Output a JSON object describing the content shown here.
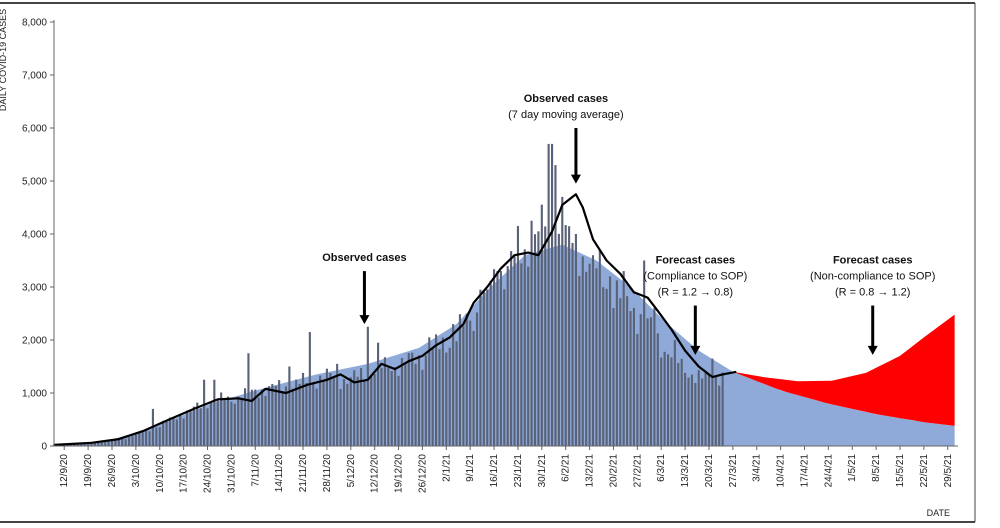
{
  "chart_data": {
    "type": "bar",
    "ylabel": "DAILY COVID-19 CASES",
    "xlabel": "DATE",
    "ylim": [
      0,
      8000
    ],
    "y_ticks": [
      0,
      1000,
      2000,
      3000,
      4000,
      5000,
      6000,
      7000,
      8000
    ],
    "y_tick_labels": [
      "0",
      "1,000",
      "2,000",
      "3,000",
      "4,000",
      "5,000",
      "6,000",
      "7,000",
      "8,000"
    ],
    "x_range": [
      "2020-09-09",
      "2021-06-01"
    ],
    "x_ticks": [
      {
        "date": "2020-09-12",
        "label": "12/9/20"
      },
      {
        "date": "2020-09-19",
        "label": "19/9/20"
      },
      {
        "date": "2020-09-26",
        "label": "26/9/20"
      },
      {
        "date": "2020-10-03",
        "label": "3/10/20"
      },
      {
        "date": "2020-10-10",
        "label": "10/10/20"
      },
      {
        "date": "2020-10-17",
        "label": "17/10/20"
      },
      {
        "date": "2020-10-24",
        "label": "24/10/20"
      },
      {
        "date": "2020-10-31",
        "label": "31/10/20"
      },
      {
        "date": "2020-11-07",
        "label": "7/11/20"
      },
      {
        "date": "2020-11-14",
        "label": "14/11/20"
      },
      {
        "date": "2020-11-21",
        "label": "21/11/20"
      },
      {
        "date": "2020-11-28",
        "label": "28/11/20"
      },
      {
        "date": "2020-12-05",
        "label": "5/12/20"
      },
      {
        "date": "2020-12-12",
        "label": "12/12/20"
      },
      {
        "date": "2020-12-19",
        "label": "19/12/20"
      },
      {
        "date": "2020-12-26",
        "label": "26/12/20"
      },
      {
        "date": "2021-01-02",
        "label": "2/1/21"
      },
      {
        "date": "2021-01-09",
        "label": "9/1/21"
      },
      {
        "date": "2021-01-16",
        "label": "16/1/21"
      },
      {
        "date": "2021-01-23",
        "label": "23/1/21"
      },
      {
        "date": "2021-01-30",
        "label": "30/1/21"
      },
      {
        "date": "2021-02-06",
        "label": "6/2/21"
      },
      {
        "date": "2021-02-13",
        "label": "13/2/21"
      },
      {
        "date": "2021-02-20",
        "label": "20/2/21"
      },
      {
        "date": "2021-02-27",
        "label": "27/2/21"
      },
      {
        "date": "2021-03-06",
        "label": "6/3/21"
      },
      {
        "date": "2021-03-13",
        "label": "13/3/21"
      },
      {
        "date": "2021-03-20",
        "label": "20/3/21"
      },
      {
        "date": "2021-03-27",
        "label": "27/3/21"
      },
      {
        "date": "2021-04-03",
        "label": "3/4/21"
      },
      {
        "date": "2021-04-10",
        "label": "10/4/21"
      },
      {
        "date": "2021-04-17",
        "label": "17/4/21"
      },
      {
        "date": "2021-04-24",
        "label": "24/4/21"
      },
      {
        "date": "2021-05-01",
        "label": "1/5/21"
      },
      {
        "date": "2021-05-08",
        "label": "8/5/21"
      },
      {
        "date": "2021-05-15",
        "label": "15/5/21"
      },
      {
        "date": "2021-05-22",
        "label": "22/5/21"
      },
      {
        "date": "2021-05-29",
        "label": "29/5/21"
      }
    ],
    "series": [
      {
        "name": "Observed cases",
        "kind": "bar",
        "color": "#5a6278",
        "start_date": "2020-09-09",
        "end_date": "2021-03-24",
        "key_points": [
          [
            "2020-09-09",
            30
          ],
          [
            "2020-09-20",
            60
          ],
          [
            "2020-09-30",
            150
          ],
          [
            "2020-10-07",
            300
          ],
          [
            "2020-10-15",
            550
          ],
          [
            "2020-10-25",
            850
          ],
          [
            "2020-11-01",
            900
          ],
          [
            "2020-11-08",
            1050
          ],
          [
            "2020-11-18",
            1150
          ],
          [
            "2020-11-28",
            1300
          ],
          [
            "2020-12-05",
            1250
          ],
          [
            "2020-12-12",
            1450
          ],
          [
            "2020-12-20",
            1550
          ],
          [
            "2020-12-28",
            1750
          ],
          [
            "2021-01-05",
            2100
          ],
          [
            "2021-01-12",
            2600
          ],
          [
            "2021-01-19",
            3400
          ],
          [
            "2021-01-26",
            3700
          ],
          [
            "2021-02-01",
            4100
          ],
          [
            "2021-02-05",
            3900
          ],
          [
            "2021-02-12",
            3600
          ],
          [
            "2021-02-19",
            3000
          ],
          [
            "2021-02-26",
            2600
          ],
          [
            "2021-03-05",
            2000
          ],
          [
            "2021-03-12",
            1500
          ],
          [
            "2021-03-18",
            1250
          ],
          [
            "2021-03-24",
            1350
          ]
        ],
        "spikes": [
          [
            "2020-10-08",
            700
          ],
          [
            "2020-10-23",
            1250
          ],
          [
            "2020-10-26",
            1250
          ],
          [
            "2020-11-05",
            1750
          ],
          [
            "2020-11-17",
            1500
          ],
          [
            "2020-11-23",
            2150
          ],
          [
            "2020-12-01",
            1550
          ],
          [
            "2020-12-10",
            2250
          ],
          [
            "2020-12-13",
            1950
          ],
          [
            "2020-12-28",
            2050
          ],
          [
            "2021-01-04",
            2300
          ],
          [
            "2021-01-12",
            2950
          ],
          [
            "2021-01-17",
            3300
          ],
          [
            "2021-01-23",
            4150
          ],
          [
            "2021-01-27",
            4250
          ],
          [
            "2021-01-29",
            4050
          ],
          [
            "2021-02-01",
            5700
          ],
          [
            "2021-02-02",
            5700
          ],
          [
            "2021-02-03",
            5300
          ],
          [
            "2021-02-05",
            4700
          ],
          [
            "2021-02-09",
            4000
          ],
          [
            "2021-02-14",
            3600
          ],
          [
            "2021-02-19",
            3200
          ],
          [
            "2021-02-23",
            3300
          ],
          [
            "2021-03-01",
            3500
          ],
          [
            "2021-03-04",
            2600
          ],
          [
            "2021-03-10",
            2000
          ],
          [
            "2021-03-21",
            1650
          ]
        ]
      },
      {
        "name": "Observed cases (7 day moving average)",
        "kind": "line",
        "color": "#000000",
        "points": [
          [
            "2020-09-09",
            20
          ],
          [
            "2020-09-20",
            60
          ],
          [
            "2020-09-28",
            130
          ],
          [
            "2020-10-05",
            280
          ],
          [
            "2020-10-12",
            480
          ],
          [
            "2020-10-20",
            700
          ],
          [
            "2020-10-27",
            880
          ],
          [
            "2020-11-02",
            900
          ],
          [
            "2020-11-06",
            850
          ],
          [
            "2020-11-10",
            1080
          ],
          [
            "2020-11-16",
            1000
          ],
          [
            "2020-11-22",
            1150
          ],
          [
            "2020-11-28",
            1250
          ],
          [
            "2020-12-02",
            1350
          ],
          [
            "2020-12-06",
            1200
          ],
          [
            "2020-12-10",
            1250
          ],
          [
            "2020-12-14",
            1550
          ],
          [
            "2020-12-18",
            1450
          ],
          [
            "2020-12-22",
            1600
          ],
          [
            "2020-12-26",
            1700
          ],
          [
            "2020-12-30",
            1900
          ],
          [
            "2021-01-03",
            2050
          ],
          [
            "2021-01-07",
            2300
          ],
          [
            "2021-01-10",
            2700
          ],
          [
            "2021-01-14",
            3000
          ],
          [
            "2021-01-18",
            3350
          ],
          [
            "2021-01-22",
            3600
          ],
          [
            "2021-01-26",
            3650
          ],
          [
            "2021-01-29",
            3600
          ],
          [
            "2021-02-02",
            4050
          ],
          [
            "2021-02-05",
            4550
          ],
          [
            "2021-02-09",
            4750
          ],
          [
            "2021-02-11",
            4500
          ],
          [
            "2021-02-14",
            3900
          ],
          [
            "2021-02-18",
            3500
          ],
          [
            "2021-02-22",
            3250
          ],
          [
            "2021-02-26",
            2900
          ],
          [
            "2021-03-02",
            2800
          ],
          [
            "2021-03-05",
            2550
          ],
          [
            "2021-03-09",
            2200
          ],
          [
            "2021-03-13",
            1800
          ],
          [
            "2021-03-17",
            1500
          ],
          [
            "2021-03-21",
            1300
          ],
          [
            "2021-03-24",
            1350
          ],
          [
            "2021-03-28",
            1400
          ]
        ]
      },
      {
        "name": "Forecast cases (Compliance to SOP)",
        "kind": "area",
        "color": "#8faad8",
        "points": [
          [
            "2020-09-09",
            0
          ],
          [
            "2020-09-25",
            100
          ],
          [
            "2020-10-10",
            400
          ],
          [
            "2020-10-25",
            800
          ],
          [
            "2020-11-10",
            1100
          ],
          [
            "2020-11-25",
            1350
          ],
          [
            "2020-12-10",
            1550
          ],
          [
            "2020-12-25",
            1850
          ],
          [
            "2021-01-05",
            2300
          ],
          [
            "2021-01-15",
            3000
          ],
          [
            "2021-01-25",
            3600
          ],
          [
            "2021-02-05",
            3800
          ],
          [
            "2021-02-15",
            3500
          ],
          [
            "2021-02-25",
            3000
          ],
          [
            "2021-03-07",
            2350
          ],
          [
            "2021-03-17",
            1800
          ],
          [
            "2021-03-27",
            1400
          ],
          [
            "2021-04-10",
            1050
          ],
          [
            "2021-04-24",
            800
          ],
          [
            "2021-05-08",
            600
          ],
          [
            "2021-05-22",
            450
          ],
          [
            "2021-05-31",
            380
          ]
        ]
      },
      {
        "name": "Forecast cases (Non-compliance to SOP)",
        "kind": "area",
        "color": "#ff0000",
        "points": [
          [
            "2021-03-27",
            1400
          ],
          [
            "2021-04-05",
            1300
          ],
          [
            "2021-04-15",
            1220
          ],
          [
            "2021-04-25",
            1230
          ],
          [
            "2021-05-05",
            1380
          ],
          [
            "2021-05-15",
            1700
          ],
          [
            "2021-05-22",
            2050
          ],
          [
            "2021-05-31",
            2480
          ]
        ]
      }
    ],
    "annotations": [
      {
        "title": "Observed cases",
        "lines": [],
        "arrow_date": "2020-12-09",
        "arrow_top": 3300,
        "arrow_bottom": 2300
      },
      {
        "title": "Observed cases",
        "lines": [
          "(7 day moving average)"
        ],
        "arrow_date": "2021-02-09",
        "arrow_top": 6000,
        "arrow_bottom": 4950
      },
      {
        "title": "Forecast cases",
        "lines": [
          "(Compliance to SOP)",
          "(R = 1.2 → 0.8)"
        ],
        "arrow_date": "2021-03-16",
        "arrow_top": 2650,
        "arrow_bottom": 1720
      },
      {
        "title": "Forecast cases",
        "lines": [
          "(Non-compliance to SOP)",
          "(R = 0.8 → 1.2)"
        ],
        "arrow_date": "2021-05-07",
        "arrow_top": 2650,
        "arrow_bottom": 1720
      }
    ]
  }
}
